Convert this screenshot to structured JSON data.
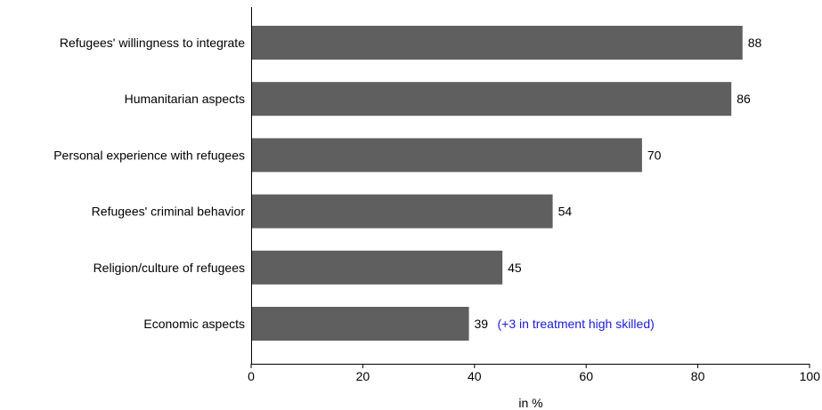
{
  "chart_data": {
    "type": "bar",
    "orientation": "horizontal",
    "categories": [
      "Refugees' willingness to integrate",
      "Humanitarian aspects",
      "Personal experience with refugees",
      "Refugees' criminal behavior",
      "Religion/culture of refugees",
      "Economic aspects"
    ],
    "values": [
      88,
      86,
      70,
      54,
      45,
      39
    ],
    "data_labels": [
      "88",
      "86",
      "70",
      "54",
      "45",
      "39"
    ],
    "annotations": [
      {
        "category_index": 5,
        "text": "(+3 in treatment high skilled)",
        "color": "#1a1adc"
      }
    ],
    "title": "",
    "xlabel": "in %",
    "ylabel": "",
    "xlim": [
      0,
      100
    ],
    "xticks": [
      0,
      20,
      40,
      60,
      80,
      100
    ],
    "xtick_labels": [
      "0",
      "20",
      "40",
      "60",
      "80",
      "100"
    ],
    "grid": false,
    "legend": "none",
    "bar_color": "#5f5f5f"
  }
}
